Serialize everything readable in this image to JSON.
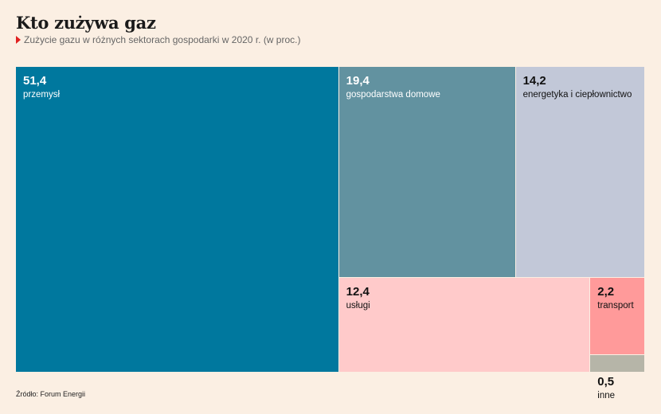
{
  "header": {
    "title": "Kto zużywa gaz",
    "subtitle": "Zużycie gazu w różnych sektorach gospodarki w 2020 r. (w proc.)"
  },
  "chart_data": {
    "type": "treemap",
    "unit": "proc.",
    "items": [
      {
        "name": "przemysł",
        "value": 51.4,
        "label": "51,4",
        "color": "#00789e",
        "text_color": "#ffffff"
      },
      {
        "name": "gospodarstwa domowe",
        "value": 19.4,
        "label": "19,4",
        "color": "#6292a0",
        "text_color": "#ffffff"
      },
      {
        "name": "energetyka i ciepłownictwo",
        "value": 14.2,
        "label": "14,2",
        "color": "#c2c8d8",
        "text_color": "#111111"
      },
      {
        "name": "usługi",
        "value": 12.4,
        "label": "12,4",
        "color": "#ffcaca",
        "text_color": "#111111"
      },
      {
        "name": "transport",
        "value": 2.2,
        "label": "2,2",
        "color": "#ff9a9a",
        "text_color": "#111111"
      },
      {
        "name": "inne",
        "value": 0.5,
        "label": "0,5",
        "color": "#b6b5a8",
        "text_color": "#111111"
      }
    ]
  },
  "footer": {
    "source": "Źródło: Forum Energii"
  }
}
